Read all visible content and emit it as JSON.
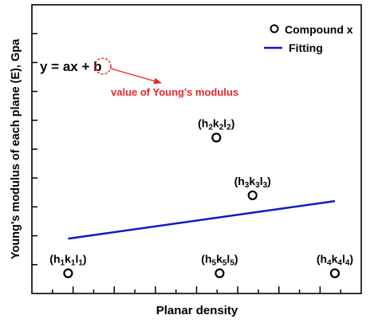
{
  "chart_data": {
    "type": "scatter",
    "title": "",
    "xlabel": "Planar density",
    "ylabel": "Young's modulus of each plane (E), Gpa",
    "x_ticks_labeled": false,
    "y_ticks_labeled": false,
    "xlim": [
      0,
      1
    ],
    "ylim": [
      0,
      1
    ],
    "grid": false,
    "legend_position": "top-right",
    "series": [
      {
        "name": "Compound x",
        "kind": "points",
        "marker": "open-circle",
        "color": "#000000",
        "points": [
          {
            "x": 0.11,
            "y": 0.07,
            "label": [
              "h",
              "1",
              "k",
              "1",
              "l",
              "1"
            ]
          },
          {
            "x": 0.56,
            "y": 0.54,
            "label": [
              "h",
              "2",
              "k",
              "2",
              "l",
              "2"
            ]
          },
          {
            "x": 0.67,
            "y": 0.34,
            "label": [
              "h",
              "3",
              "k",
              "3",
              "l",
              "3"
            ]
          },
          {
            "x": 0.92,
            "y": 0.07,
            "label": [
              "h",
              "4",
              "k",
              "4",
              "l",
              "4"
            ]
          },
          {
            "x": 0.57,
            "y": 0.07,
            "label": [
              "h",
              "5",
              "k",
              "5",
              "l",
              "5"
            ]
          }
        ]
      },
      {
        "name": "Fitting",
        "kind": "line",
        "color": "#1515cc",
        "x": [
          0.11,
          0.92
        ],
        "y": [
          0.19,
          0.32
        ]
      }
    ],
    "annotations": {
      "equation_left": "y = ax + ",
      "equation_b": "b",
      "note_text": "value of Young's modulus",
      "note_color": "#e8262a"
    }
  }
}
